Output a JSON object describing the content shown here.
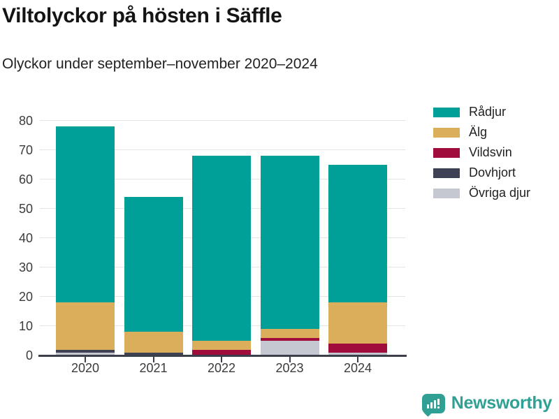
{
  "title": "Viltolyckor på hösten i Säffle",
  "subtitle": "Olyckor under september–november 2020–2024",
  "chart_data": {
    "type": "bar",
    "stacked": true,
    "title": "Viltolyckor på hösten i Säffle",
    "subtitle": "Olyckor under september–november 2020–2024",
    "categories": [
      "2020",
      "2021",
      "2022",
      "2023",
      "2024"
    ],
    "series": [
      {
        "name": "Rådjur",
        "color": "#00a099",
        "values": [
          60,
          46,
          63,
          59,
          47
        ]
      },
      {
        "name": "Älg",
        "color": "#dbae5c",
        "values": [
          16,
          7,
          3,
          3,
          14
        ]
      },
      {
        "name": "Vildsvin",
        "color": "#a00d3c",
        "values": [
          0,
          0,
          2,
          1,
          3
        ]
      },
      {
        "name": "Dovhjort",
        "color": "#3f4254",
        "values": [
          1,
          1,
          0,
          0,
          0
        ]
      },
      {
        "name": "Övriga djur",
        "color": "#c6c8d1",
        "values": [
          1,
          0,
          0,
          5,
          1
        ]
      }
    ],
    "totals": [
      78,
      54,
      68,
      68,
      65
    ],
    "xlabel": "",
    "ylabel": "",
    "ylim": [
      0,
      80
    ],
    "yticks": [
      0,
      10,
      20,
      30,
      40,
      50,
      60,
      70,
      80
    ],
    "grid": true,
    "legend_position": "top-right",
    "stack_order_bottom_to_top": [
      "Övriga djur",
      "Dovhjort",
      "Vildsvin",
      "Älg",
      "Rådjur"
    ]
  },
  "brand": {
    "name": "Newsworthy",
    "color": "#2fa093"
  }
}
